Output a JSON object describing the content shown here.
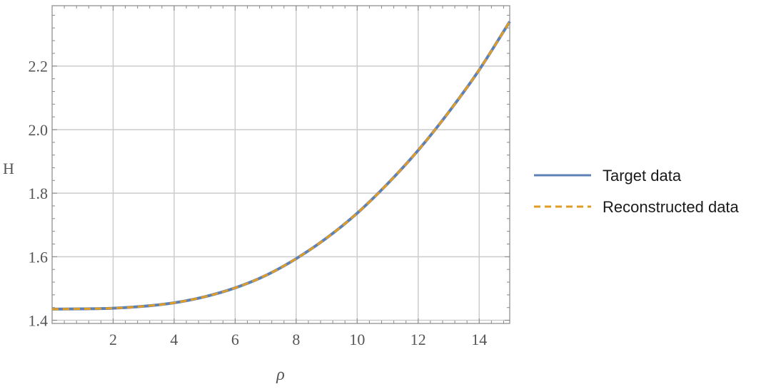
{
  "chart_data": {
    "type": "line",
    "title": "",
    "xlabel": "ρ",
    "ylabel": "H",
    "xlim": [
      0,
      15
    ],
    "ylim": [
      1.39,
      2.39
    ],
    "grid": true,
    "legend_position": "right",
    "x_ticks": [
      2,
      4,
      6,
      8,
      10,
      12,
      14
    ],
    "x_tick_labels": [
      "2",
      "4",
      "6",
      "8",
      "10",
      "12",
      "14"
    ],
    "y_ticks": [
      1.4,
      1.6,
      1.8,
      2.0,
      2.2
    ],
    "y_tick_labels": [
      "1.4",
      "1.6",
      "1.8",
      "2.0",
      "2.2"
    ],
    "series": [
      {
        "name": "Target data",
        "color": "#5e81b5",
        "style": "solid",
        "x": [
          0,
          1,
          2,
          3,
          4,
          5,
          6,
          7,
          8,
          9,
          10,
          11,
          12,
          13,
          14,
          15
        ],
        "y": [
          1.435,
          1.436,
          1.438,
          1.444,
          1.455,
          1.474,
          1.502,
          1.541,
          1.594,
          1.659,
          1.737,
          1.83,
          1.935,
          2.055,
          2.188,
          2.34
        ]
      },
      {
        "name": "Reconstructed data",
        "color": "#e19c24",
        "style": "dashed",
        "x": [
          0,
          1,
          2,
          3,
          4,
          5,
          6,
          7,
          8,
          9,
          10,
          11,
          12,
          13,
          14,
          15
        ],
        "y": [
          1.435,
          1.436,
          1.438,
          1.444,
          1.455,
          1.474,
          1.502,
          1.541,
          1.594,
          1.659,
          1.737,
          1.83,
          1.935,
          2.055,
          2.188,
          2.34
        ]
      }
    ]
  }
}
